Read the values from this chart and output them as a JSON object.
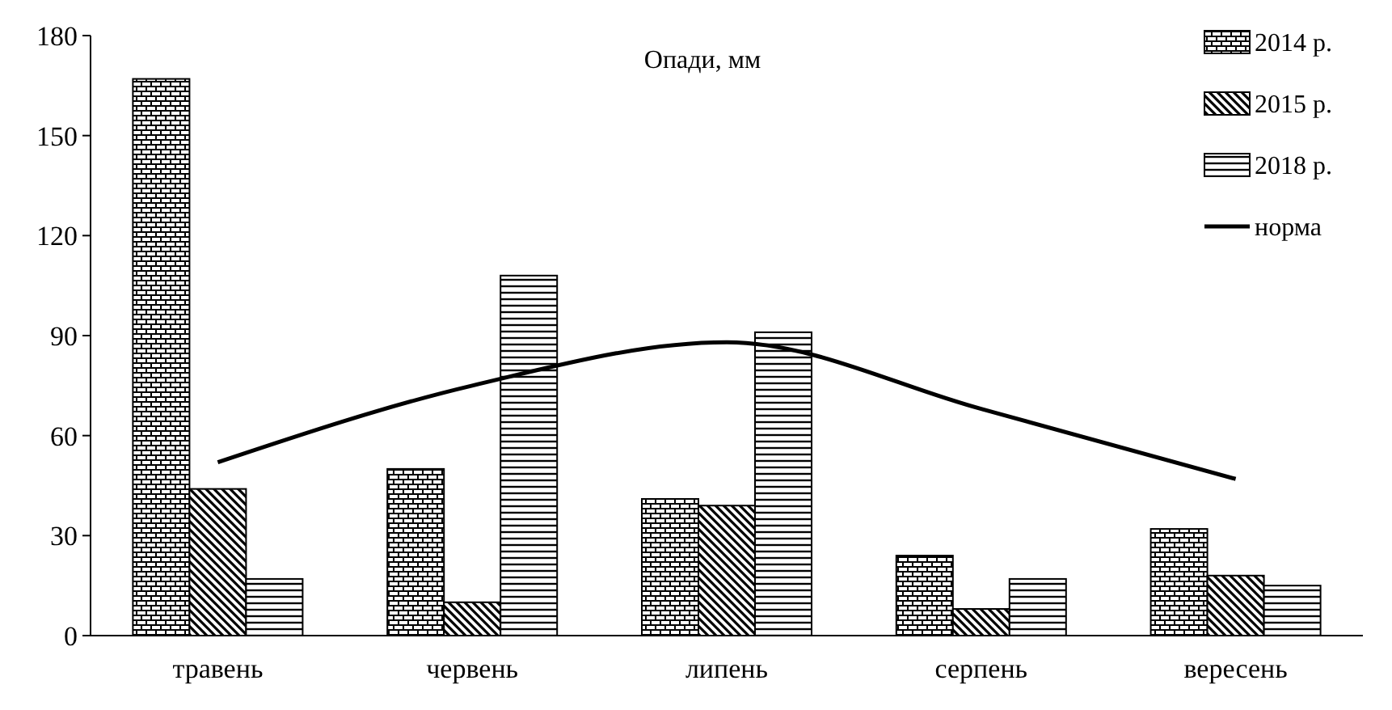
{
  "chart_data": {
    "type": "bar",
    "title": "Опади, мм",
    "categories": [
      "травень",
      "червень",
      "липень",
      "серпень",
      "вересень"
    ],
    "series": [
      {
        "name": "2014 р.",
        "color": "#000000",
        "values": [
          167,
          50,
          41,
          24,
          32
        ]
      },
      {
        "name": "2015 р.",
        "color": "#000000",
        "values": [
          44,
          10,
          39,
          8,
          18
        ]
      },
      {
        "name": "2018 р.",
        "color": "#000000",
        "values": [
          17,
          108,
          91,
          17,
          15
        ]
      },
      {
        "name": "норма",
        "type": "line",
        "color": "#000000",
        "values": [
          52,
          75,
          88,
          68,
          47
        ]
      }
    ],
    "ylim": [
      0,
      180
    ],
    "yticks": [
      0,
      30,
      60,
      90,
      120,
      150,
      180
    ],
    "grid": false,
    "legend": "top right",
    "line_style": "solid"
  }
}
